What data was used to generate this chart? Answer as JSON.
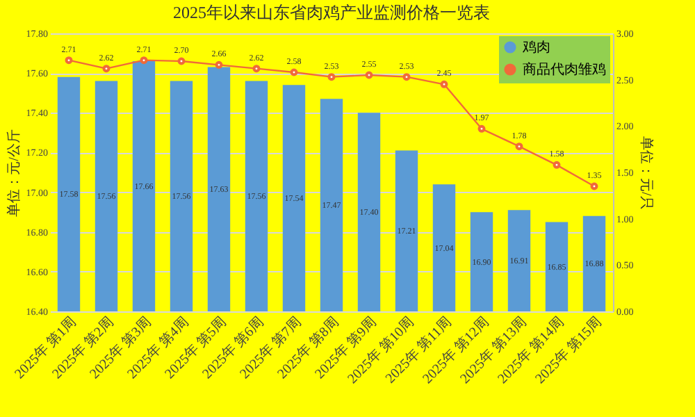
{
  "chart_data": {
    "type": "bar",
    "title": "2025年以来山东省肉鸡产业监测价格一览表",
    "ylabel": "单位：元/公斤",
    "y2label": "单位：元/只",
    "categories": [
      "2025年 第1周",
      "2025年 第2周",
      "2025年 第3周",
      "2025年 第4周",
      "2025年 第5周",
      "2025年 第6周",
      "2025年 第7周",
      "2025年 第8周",
      "2025年 第9周",
      "2025年 第10周",
      "2025年 第11周",
      "2025年 第12周",
      "2025年 第13周",
      "2025年 第14周",
      "2025年 第15周"
    ],
    "series": [
      {
        "name": "鸡肉",
        "color": "#5b9bd5",
        "values": [
          17.58,
          17.56,
          17.66,
          17.56,
          17.63,
          17.56,
          17.54,
          17.47,
          17.4,
          17.21,
          17.04,
          16.9,
          16.91,
          16.85,
          16.88
        ],
        "value_labels": [
          "17.58",
          "17.56",
          "17.66",
          "17.56",
          "17.63",
          "17.56",
          "17.54",
          "17.47",
          "17.40",
          "17.21",
          "17.04",
          "16.90",
          "16.91",
          "16.85",
          "16.88"
        ]
      },
      {
        "name": "商品代肉雏鸡",
        "type": "line",
        "axis": "y2",
        "color": "#f06a3a",
        "marker": "circle",
        "values": [
          2.71,
          2.62,
          2.71,
          2.7,
          2.66,
          2.62,
          2.58,
          2.53,
          2.55,
          2.53,
          2.45,
          1.97,
          1.78,
          1.58,
          1.35
        ],
        "value_labels": [
          "2.71",
          "2.62",
          "2.71",
          "2.70",
          "2.66",
          "2.62",
          "2.58",
          "2.53",
          "2.55",
          "2.53",
          "2.45",
          "1.97",
          "1.78",
          "1.58",
          "1.35"
        ]
      }
    ],
    "ylim": [
      16.4,
      17.8
    ],
    "yticks": [
      {
        "value": 16.4,
        "label": "16.40"
      },
      {
        "value": 16.6,
        "label": "16.60"
      },
      {
        "value": 16.8,
        "label": "16.80"
      },
      {
        "value": 17,
        "label": "17.00"
      },
      {
        "value": 17.2,
        "label": "17.20"
      },
      {
        "value": 17.4,
        "label": "17.40"
      },
      {
        "value": 17.6,
        "label": "17.60"
      },
      {
        "value": 17.8,
        "label": "17.80"
      }
    ],
    "y2lim": [
      0,
      3
    ],
    "y2ticks": [
      {
        "value": 0,
        "label": "0.00"
      },
      {
        "value": 0.5,
        "label": "0.50"
      },
      {
        "value": 1,
        "label": "1.00"
      },
      {
        "value": 1.5,
        "label": "1.50"
      },
      {
        "value": 2,
        "label": "2.00"
      },
      {
        "value": 2.5,
        "label": "2.50"
      },
      {
        "value": 3,
        "label": "3.00"
      }
    ],
    "grid": "y",
    "legend": "top right"
  }
}
